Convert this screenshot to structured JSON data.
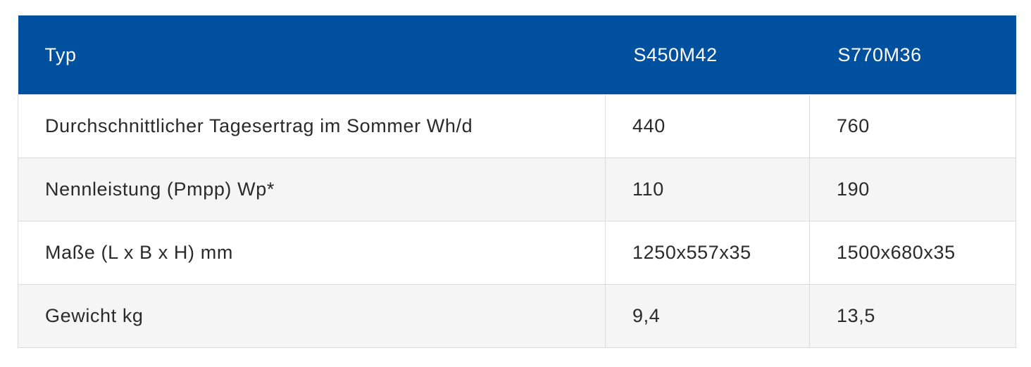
{
  "header": {
    "col_type": "Typ",
    "col_model_1": "S450M42",
    "col_model_2": "S770M36"
  },
  "rows": [
    {
      "label": "Durchschnittlicher Tagesertrag im Sommer Wh/d",
      "model_1": "440",
      "model_2": "760"
    },
    {
      "label": "Nennleistung (Pmpp) Wp*",
      "model_1": "110",
      "model_2": "190"
    },
    {
      "label": "Maße (L x B x H) mm",
      "model_1": "1250x557x35",
      "model_2": "1500x680x35"
    },
    {
      "label": "Gewicht kg",
      "model_1": "9,4",
      "model_2": "13,5"
    }
  ],
  "colors": {
    "header_background": "#0050a0",
    "header_text": "#ffffff",
    "row_alt_background": "#f5f5f5",
    "border": "#dcdcdc"
  }
}
